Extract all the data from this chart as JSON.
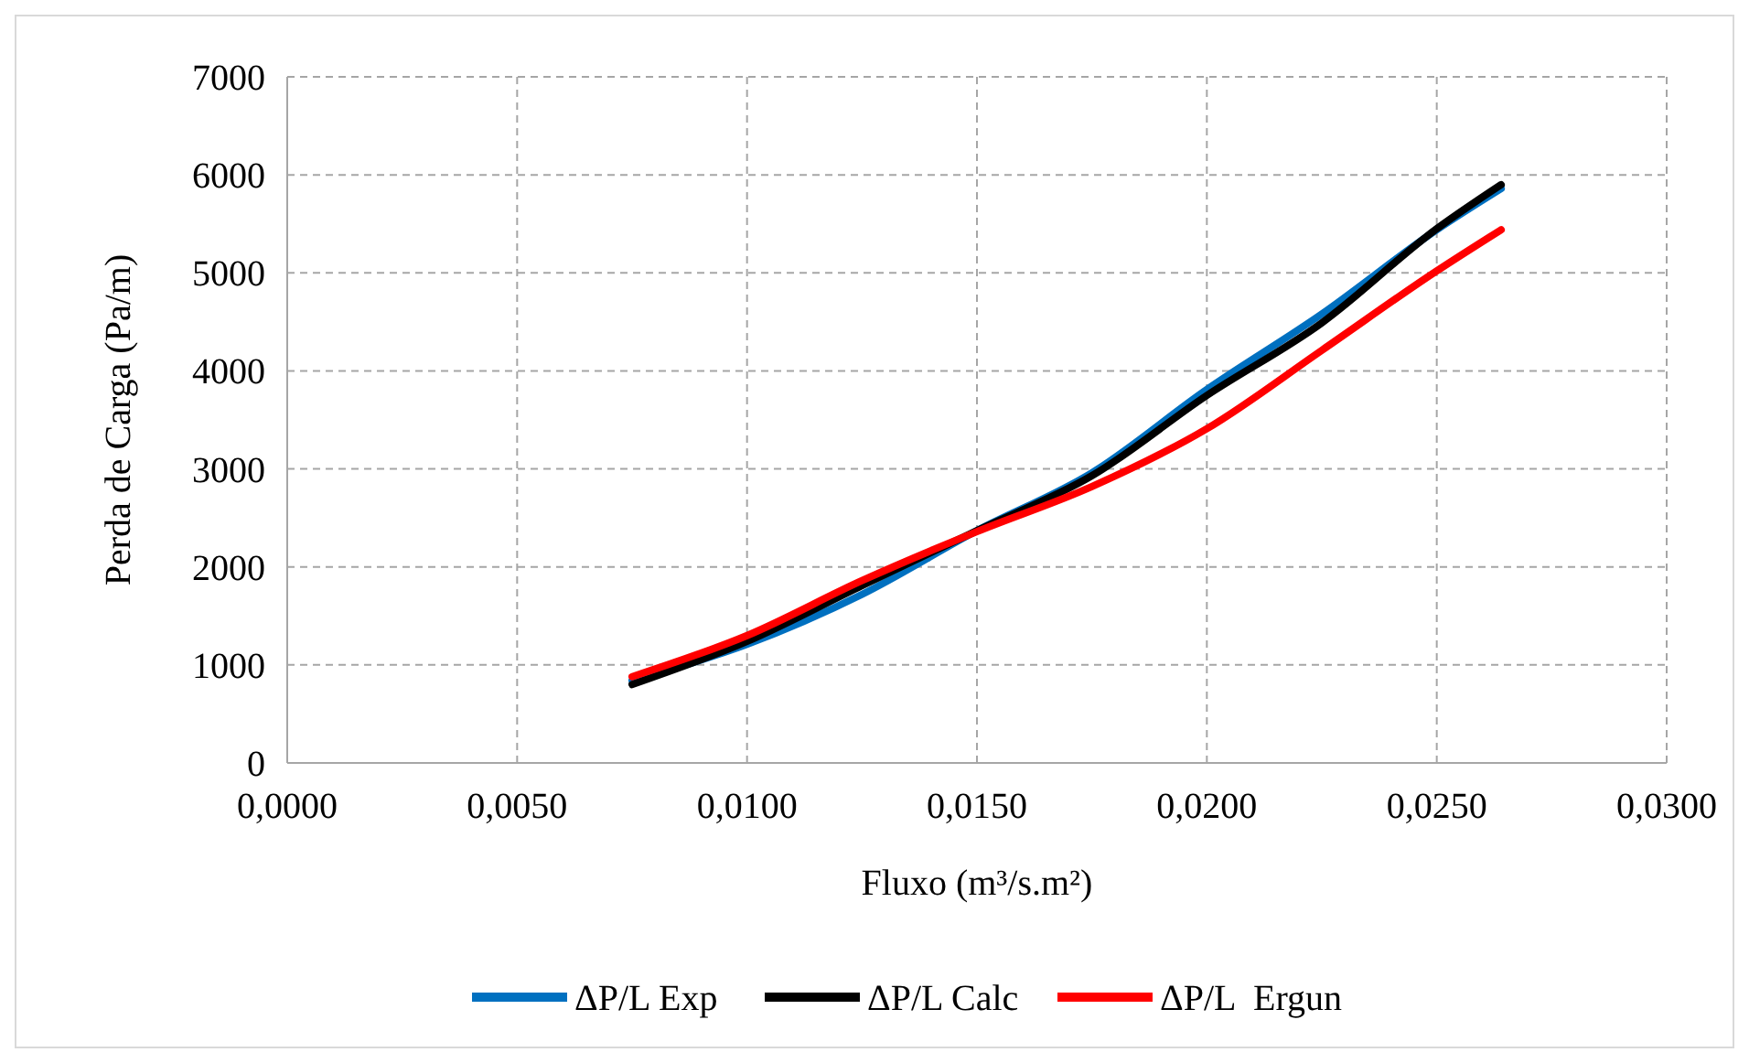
{
  "chart_data": {
    "type": "line",
    "xlabel": "Fluxo (m³/s.m²)",
    "ylabel": "Perda de Carga (Pa/m)",
    "x": [
      0.0075,
      0.01,
      0.0125,
      0.015,
      0.0175,
      0.02,
      0.0225,
      0.025,
      0.0264
    ],
    "series": [
      {
        "name": "ΔP/L Exp",
        "color": "#0070c0",
        "values": [
          840,
          1210,
          1720,
          2370,
          2960,
          3810,
          4580,
          5440,
          5860
        ]
      },
      {
        "name": "ΔP/L Calc",
        "color": "#000000",
        "values": [
          800,
          1240,
          1810,
          2370,
          2930,
          3750,
          4490,
          5450,
          5900
        ]
      },
      {
        "name": "ΔP/L  Ergun",
        "color": "#ff0000",
        "values": [
          880,
          1300,
          1860,
          2360,
          2820,
          3410,
          4210,
          5020,
          5440
        ]
      }
    ],
    "xlim": [
      0,
      0.03
    ],
    "xticks": [
      {
        "value": 0,
        "label": "0,0000"
      },
      {
        "value": 0.005,
        "label": "0,0050"
      },
      {
        "value": 0.01,
        "label": "0,0100"
      },
      {
        "value": 0.015,
        "label": "0,0150"
      },
      {
        "value": 0.02,
        "label": "0,0200"
      },
      {
        "value": 0.025,
        "label": "0,0250"
      },
      {
        "value": 0.03,
        "label": "0,0300"
      }
    ],
    "ylim": [
      0,
      7000
    ],
    "yticks": [
      0,
      1000,
      2000,
      3000,
      4000,
      5000,
      6000,
      7000
    ],
    "grid": true,
    "legend": "bottom",
    "marker": "none",
    "line_style": "solid"
  }
}
